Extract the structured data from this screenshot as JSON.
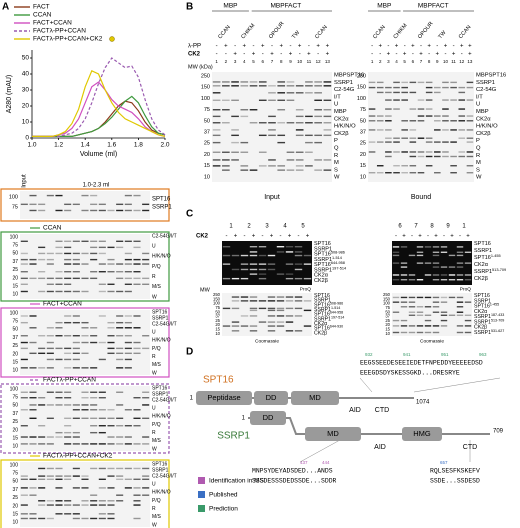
{
  "panels": {
    "a": "A",
    "b": "B",
    "c": "C",
    "d": "D"
  },
  "chart_data": {
    "type": "line",
    "ylabel": "A280 (mAU)",
    "xlabel": "Volume (ml)",
    "xlim": [
      1.0,
      2.0
    ],
    "xticks": [
      {
        "value": 1.0,
        "label": "1.0"
      },
      1.2,
      1.4,
      1.6,
      1.8,
      {
        "value": 2.0,
        "label": "2.0"
      }
    ],
    "ylim": [
      0,
      55
    ],
    "yticks": [
      0,
      10,
      20,
      30,
      40,
      50
    ],
    "x": [
      1.0,
      1.05,
      1.1,
      1.15,
      1.2,
      1.25,
      1.3,
      1.35,
      1.4,
      1.45,
      1.5,
      1.55,
      1.6,
      1.65,
      1.7,
      1.75,
      1.8,
      1.85,
      1.9,
      1.95,
      2.0
    ],
    "series": [
      {
        "name": "FACT",
        "color": "#8b3a1a",
        "dashed": false,
        "values": [
          1,
          1,
          1,
          1,
          1,
          1,
          1,
          2,
          3,
          4,
          6,
          10,
          15,
          20,
          23,
          22,
          17,
          10,
          5,
          3,
          2
        ]
      },
      {
        "name": "CCAN",
        "color": "#3f9a3f",
        "dashed": false,
        "values": [
          1,
          1,
          1,
          1,
          1,
          1,
          1,
          2,
          3,
          4,
          6,
          9,
          13,
          18,
          23,
          26,
          22,
          14,
          7,
          3,
          2
        ]
      },
      {
        "name": "FACT+CCAN",
        "color": "#d04fc0",
        "dashed": false,
        "values": [
          1,
          1,
          1,
          1,
          2,
          3,
          6,
          12,
          22,
          32,
          35,
          30,
          24,
          20,
          18,
          16,
          12,
          7,
          4,
          2,
          1
        ]
      },
      {
        "name": "FACTλ-PP+CCAN",
        "color": "#9a5ab0",
        "dashed": true,
        "values": [
          1,
          1,
          1,
          1,
          1,
          2,
          3,
          6,
          12,
          22,
          34,
          44,
          50,
          47,
          44,
          45,
          38,
          24,
          12,
          5,
          2
        ]
      },
      {
        "name": "FACTλ-PP+CCAN+CK2",
        "color": "#e0c800",
        "dashed": false,
        "values": [
          1,
          1,
          1,
          1,
          2,
          4,
          9,
          18,
          32,
          42,
          40,
          30,
          22,
          16,
          12,
          10,
          8,
          6,
          4,
          2,
          1
        ]
      }
    ],
    "gel_border_colors": [
      "#e07a20",
      "#3f9a3f",
      "#d04fc0",
      "#9a5ab0",
      "#e0c800"
    ]
  },
  "panel_a_gels": {
    "input_label": "Input",
    "range_label": "1.0-2.3 ml",
    "fact_labels": [
      "SPT16",
      "SSRP1"
    ],
    "fact_mw": [
      100,
      75
    ],
    "complex_labels": [
      "C2-54G/I/T",
      "U",
      "H/K/N/O",
      "P/Q",
      "R",
      "M/S",
      "W"
    ],
    "complex_mw": [
      100,
      75,
      50,
      37,
      25,
      20,
      15,
      10
    ]
  },
  "panel_b": {
    "mbp": "MBP",
    "mbp_fact": "MBPFACT",
    "lane_groups": [
      "CCAN",
      "CHIKM",
      "OPOUR",
      "TW",
      "CCAN"
    ],
    "lambda_pp": "λ-PP",
    "ck2": "CK2",
    "lambda_pp_signs": [
      "-",
      "+",
      "-",
      "+",
      "-",
      "+",
      "-",
      "+",
      "-",
      "+",
      "-",
      "+",
      "+"
    ],
    "ck2_signs": [
      "-",
      "-",
      "+",
      "-",
      "+",
      "-",
      "+",
      "-",
      "+",
      "-",
      "+",
      "-",
      "+"
    ],
    "lane_numbers": [
      1,
      2,
      3,
      4,
      5,
      6,
      7,
      8,
      9,
      10,
      11,
      12,
      13
    ],
    "mw_title": "MW (kDa)",
    "mw": [
      250,
      150,
      100,
      75,
      50,
      37,
      25,
      20,
      15,
      10
    ],
    "bands": [
      "MBPSPT16",
      "SSRP1",
      "C2-54G",
      "I/T",
      "U",
      "MBP",
      "CK2α",
      "H/K/N/O",
      "CK2β",
      "P",
      "Q",
      "R",
      "M",
      "S",
      "W"
    ],
    "left_title": "Input",
    "right_title": "Bound"
  },
  "panel_c": {
    "ck2": "CK2",
    "lanes_left": [
      1,
      2,
      3,
      4,
      5
    ],
    "lanes_right": [
      6,
      7,
      8,
      9,
      1
    ],
    "signs": [
      "-",
      "+"
    ],
    "mw_title": "MW",
    "mw": [
      250,
      150,
      100,
      75,
      50,
      37,
      25,
      20,
      15,
      10
    ],
    "proq": "ProQ",
    "coomassie": "Coomassie",
    "top_left": [
      {
        "name": "SPT16"
      },
      {
        "name": "SSRP1"
      },
      {
        "name": "SPT16",
        "sup": "508-986"
      },
      {
        "name": "SSRP1",
        "sup": "1-514"
      },
      {
        "name": "SPT16",
        "sup": "644-958"
      },
      {
        "name": "SSRP1",
        "sup": "197-514"
      },
      {
        "name": "CK2α"
      },
      {
        "name": "CK2β"
      }
    ],
    "top_right": [
      {
        "name": "SPT16"
      },
      {
        "name": "SSRP1"
      },
      {
        "name": "SPT16",
        "sup": "1-455"
      },
      {
        "name": "CK2α"
      },
      {
        "name": "SSRP1",
        "sup": "513-709"
      },
      {
        "name": "CK2β"
      }
    ],
    "bottom_left": [
      {
        "name": "SPT16"
      },
      {
        "name": "SSRP1"
      },
      {
        "name": "SPT16",
        "sup": "508-986"
      },
      {
        "name": "SSRP1",
        "sup": "1-514"
      },
      {
        "name": "SPT16",
        "sup": "644-958"
      },
      {
        "name": "SSRP1",
        "sup": "197-514"
      },
      {
        "name": "CK2α"
      },
      {
        "name": "SPT16",
        "sup": "644-930"
      },
      {
        "name": "CK2β"
      }
    ],
    "bottom_right": [
      {
        "name": "SPT16"
      },
      {
        "name": "SSRP1"
      },
      {
        "name": "SPT16",
        "sup": "1-455"
      },
      {
        "name": "CK2α"
      },
      {
        "name": "SSRP1",
        "sup": "187-433"
      },
      {
        "name": "SSRP1",
        "sup": "513-709"
      },
      {
        "name": "CK2β"
      },
      {
        "name": "SSRP1",
        "sup": "531-627"
      }
    ]
  },
  "panel_d": {
    "spt16": "SPT16",
    "ssrp1": "SSRP1",
    "spt16_domains": [
      "Peptidase",
      "DD",
      "MD"
    ],
    "spt16_aid": "AID",
    "spt16_ctd": "CTD",
    "spt16_start": 1,
    "spt16_end": 1074,
    "ssrp1_domains": [
      "DD",
      "MD",
      "HMG"
    ],
    "ssrp1_aid": "AID",
    "ssrp1_ctd": "CTD",
    "ssrp1_start": 1,
    "ssrp1_end": 709,
    "spt16_seq": [
      "EEGSSEEDESEEIEDETFNPEDDYEEEEEDSD",
      "EEEGDSDYSKESSGKD...DRESRYE"
    ],
    "spt16_pos": [
      932,
      941,
      951,
      963
    ],
    "ssrp1_seq": [
      "MNPSYDEYADSDED...ANDS",
      "SSSDESSSDEDSSDE...SDDR"
    ],
    "ssrp1_pos": [
      437,
      444
    ],
    "ssrp1_seq2": [
      "RQLSESFKSKEFV",
      "SSDE...SSDESD"
    ],
    "ssrp1_pos2": [
      657
    ],
    "legend": [
      "Identification in MS",
      "Published",
      "Prediction"
    ],
    "legend_colors": [
      "#b05ab0",
      "#3a6fc4",
      "#3a9a6a"
    ]
  }
}
